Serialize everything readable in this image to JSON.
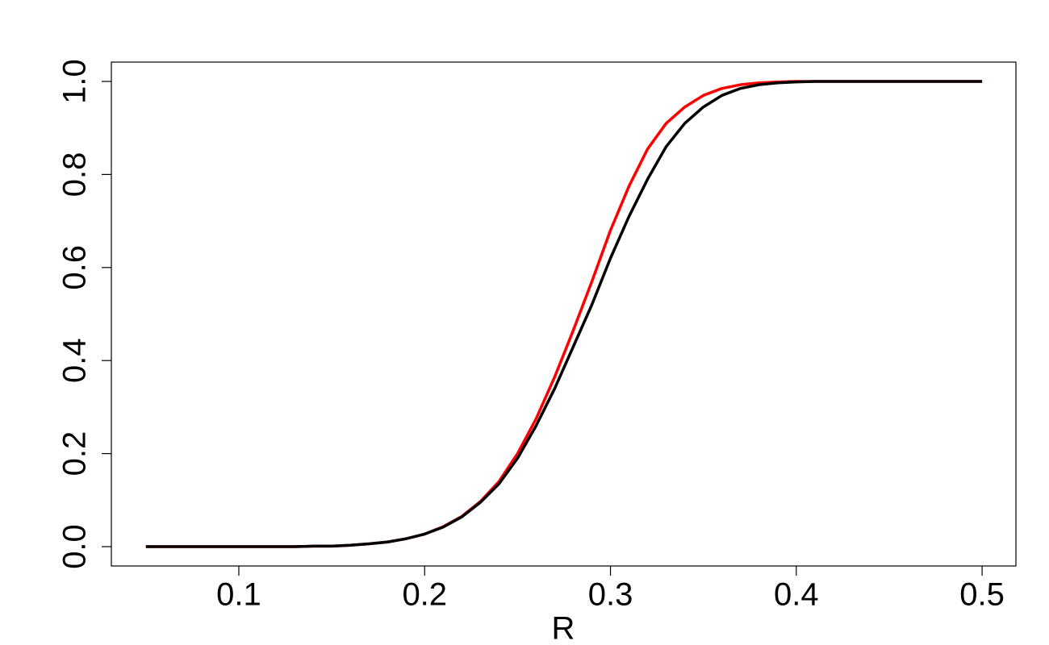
{
  "chart_data": {
    "type": "line",
    "x_label": "R",
    "x": [
      0.05,
      0.06,
      0.07,
      0.08,
      0.09,
      0.1,
      0.11,
      0.12,
      0.13,
      0.14,
      0.15,
      0.16,
      0.17,
      0.18,
      0.19,
      0.2,
      0.21,
      0.22,
      0.23,
      0.24,
      0.25,
      0.26,
      0.27,
      0.28,
      0.29,
      0.3,
      0.31,
      0.32,
      0.33,
      0.34,
      0.35,
      0.36,
      0.37,
      0.38,
      0.39,
      0.4,
      0.41,
      0.42,
      0.43,
      0.44,
      0.45,
      0.46,
      0.47,
      0.48,
      0.49,
      0.5
    ],
    "series": [
      {
        "color": "#ff0000",
        "values": [
          0,
          0,
          0,
          0,
          0,
          0,
          0,
          0,
          0,
          0.001,
          0.001,
          0.003,
          0.006,
          0.01,
          0.017,
          0.027,
          0.043,
          0.065,
          0.097,
          0.14,
          0.2,
          0.275,
          0.365,
          0.465,
          0.57,
          0.68,
          0.775,
          0.855,
          0.91,
          0.945,
          0.97,
          0.985,
          0.993,
          0.997,
          0.999,
          1,
          1,
          1,
          1,
          1,
          1,
          1,
          1,
          1,
          1,
          1
        ]
      },
      {
        "color": "#000000",
        "values": [
          0,
          0,
          0,
          0,
          0,
          0,
          0,
          0,
          0,
          0.001,
          0.001,
          0.003,
          0.006,
          0.01,
          0.017,
          0.027,
          0.042,
          0.064,
          0.095,
          0.135,
          0.19,
          0.26,
          0.34,
          0.43,
          0.52,
          0.62,
          0.71,
          0.79,
          0.86,
          0.91,
          0.945,
          0.97,
          0.985,
          0.993,
          0.997,
          0.999,
          1,
          1,
          1,
          1,
          1,
          1,
          1,
          1,
          1,
          1
        ]
      }
    ],
    "xlim": [
      0.0314,
      0.5182
    ],
    "ylim": [
      -0.0416,
      1.0416
    ],
    "xticks": [
      0.1,
      0.2,
      0.3,
      0.4,
      0.5
    ],
    "yticks": [
      {
        "value": 0,
        "label": "0.0"
      },
      0.2,
      0.4,
      0.6,
      0.8,
      {
        "value": 1,
        "label": "1.0"
      }
    ]
  }
}
